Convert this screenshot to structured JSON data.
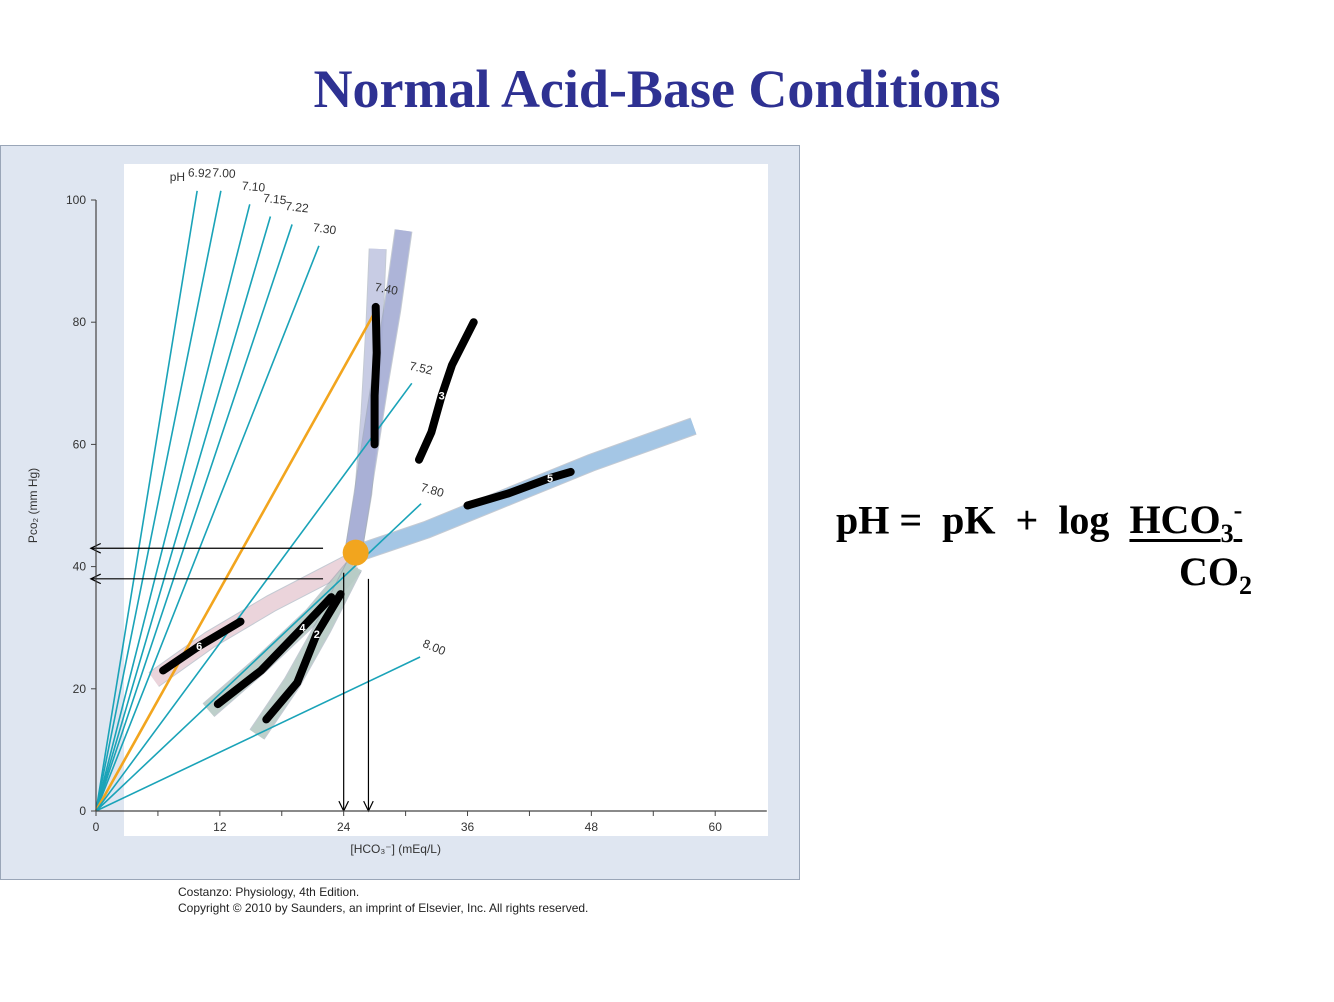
{
  "slide": {
    "title": "Normal Acid-Base Conditions"
  },
  "equation": {
    "lhs": "pH =",
    "pk": "pK",
    "plus": "+",
    "log": "log",
    "numerator_base": "HCO",
    "numerator_sub": "3",
    "numerator_sup": "-",
    "denominator_base": "CO",
    "denominator_sub": "2"
  },
  "credit": {
    "line1": "Costanzo: Physiology, 4th Edition.",
    "line2": "Copyright © 2010 by Saunders, an imprint of Elsevier, Inc. All rights reserved."
  },
  "chart_data": {
    "type": "line",
    "xlabel": "[HCO₃⁻] (mEq/L)",
    "ylabel": "Pco₂ (mm Hg)",
    "xlim": [
      0,
      65
    ],
    "ylim": [
      0,
      100
    ],
    "x_ticks": [
      0,
      12,
      24,
      36,
      48,
      60
    ],
    "y_ticks": [
      0,
      20,
      40,
      60,
      80,
      100
    ],
    "grid": false,
    "ph_prefix": "pH",
    "isopleths": [
      {
        "label": "6.92",
        "end": [
          9.8,
          101.5
        ],
        "color": "#1aa3b8"
      },
      {
        "label": "7.00",
        "end": [
          12.1,
          101.5
        ],
        "color": "#1aa3b8"
      },
      {
        "label": "7.10",
        "end": [
          14.9,
          99.3
        ],
        "color": "#1aa3b8"
      },
      {
        "label": "7.15",
        "end": [
          16.9,
          97.3
        ],
        "color": "#1aa3b8"
      },
      {
        "label": "7.22",
        "end": [
          19.0,
          96.0
        ],
        "color": "#1aa3b8"
      },
      {
        "label": "7.30",
        "end": [
          21.6,
          92.5
        ],
        "color": "#1aa3b8"
      },
      {
        "label": "7.40",
        "end": [
          27.4,
          82.8
        ],
        "color": "#f2a51e"
      },
      {
        "label": "7.52",
        "end": [
          30.6,
          70.0
        ],
        "color": "#1aa3b8"
      },
      {
        "label": "7.80",
        "end": [
          31.5,
          50.3
        ],
        "color": "#1aa3b8"
      },
      {
        "label": "8.00",
        "end": [
          31.4,
          25.2
        ],
        "color": "#1aa3b8"
      }
    ],
    "bands": [
      {
        "name": "band-1",
        "color": "#c9cde6",
        "points": [
          [
            27.3,
            92
          ],
          [
            27.0,
            80
          ],
          [
            26.5,
            65
          ],
          [
            25.9,
            52
          ],
          [
            25.0,
            43
          ]
        ]
      },
      {
        "name": "band-2",
        "color": "#a9b0d8",
        "points": [
          [
            29.8,
            95
          ],
          [
            28.7,
            82
          ],
          [
            27.5,
            70
          ],
          [
            26.4,
            58
          ],
          [
            25.0,
            43
          ]
        ]
      },
      {
        "name": "band-3",
        "color": "#9fc6e8",
        "points": [
          [
            57.9,
            63
          ],
          [
            48,
            57
          ],
          [
            40,
            51.5
          ],
          [
            32,
            46
          ],
          [
            25.0,
            42
          ]
        ]
      },
      {
        "name": "band-4",
        "color": "#f2d6dc",
        "points": [
          [
            5.6,
            21.5
          ],
          [
            11,
            28
          ],
          [
            17,
            34
          ],
          [
            25.0,
            41
          ]
        ]
      },
      {
        "name": "band-5",
        "color": "#bcd0c8",
        "points": [
          [
            10.9,
            16.5
          ],
          [
            16,
            24
          ],
          [
            21,
            32
          ],
          [
            25.0,
            40
          ]
        ]
      },
      {
        "name": "band-6",
        "color": "#bcd0c8",
        "points": [
          [
            15.6,
            12.5
          ],
          [
            19,
            21
          ],
          [
            22,
            30
          ],
          [
            25.0,
            40
          ]
        ]
      }
    ],
    "normal_point": {
      "x": 24,
      "y": 40,
      "color": "#f2a51e"
    },
    "markings": [
      {
        "label": "",
        "points": [
          [
            27.1,
            82.5
          ],
          [
            27.2,
            75
          ],
          [
            27.0,
            68
          ],
          [
            27.0,
            60
          ]
        ]
      },
      {
        "label": "3",
        "points": [
          [
            31.3,
            57.5
          ],
          [
            32.5,
            62
          ],
          [
            33.5,
            68
          ],
          [
            34.5,
            73
          ],
          [
            36.6,
            80
          ]
        ]
      },
      {
        "label": "5",
        "points": [
          [
            36,
            50
          ],
          [
            40,
            52
          ],
          [
            44,
            54.5
          ],
          [
            46,
            55.5
          ]
        ]
      },
      {
        "label": "6",
        "points": [
          [
            6.5,
            23
          ],
          [
            10,
            27
          ],
          [
            14,
            31
          ]
        ]
      },
      {
        "label": "4",
        "points": [
          [
            11.8,
            17.5
          ],
          [
            16,
            23
          ],
          [
            20,
            30
          ],
          [
            22.8,
            35
          ]
        ]
      },
      {
        "label": "2",
        "points": [
          [
            16.5,
            15
          ],
          [
            19.5,
            21
          ],
          [
            21.4,
            29
          ],
          [
            23.7,
            35.5
          ]
        ]
      }
    ],
    "arrows": [
      {
        "name": "hco3-arrow-24",
        "from": [
          24,
          39
        ],
        "to": [
          24,
          0
        ]
      },
      {
        "name": "hco3-arrow-26",
        "from": [
          26.4,
          38
        ],
        "to": [
          26.4,
          0
        ]
      },
      {
        "name": "pco2-arrow-43",
        "from": [
          22,
          43
        ],
        "to": [
          -0.5,
          43
        ]
      },
      {
        "name": "pco2-arrow-38",
        "from": [
          22,
          38
        ],
        "to": [
          -0.5,
          38
        ]
      }
    ]
  }
}
